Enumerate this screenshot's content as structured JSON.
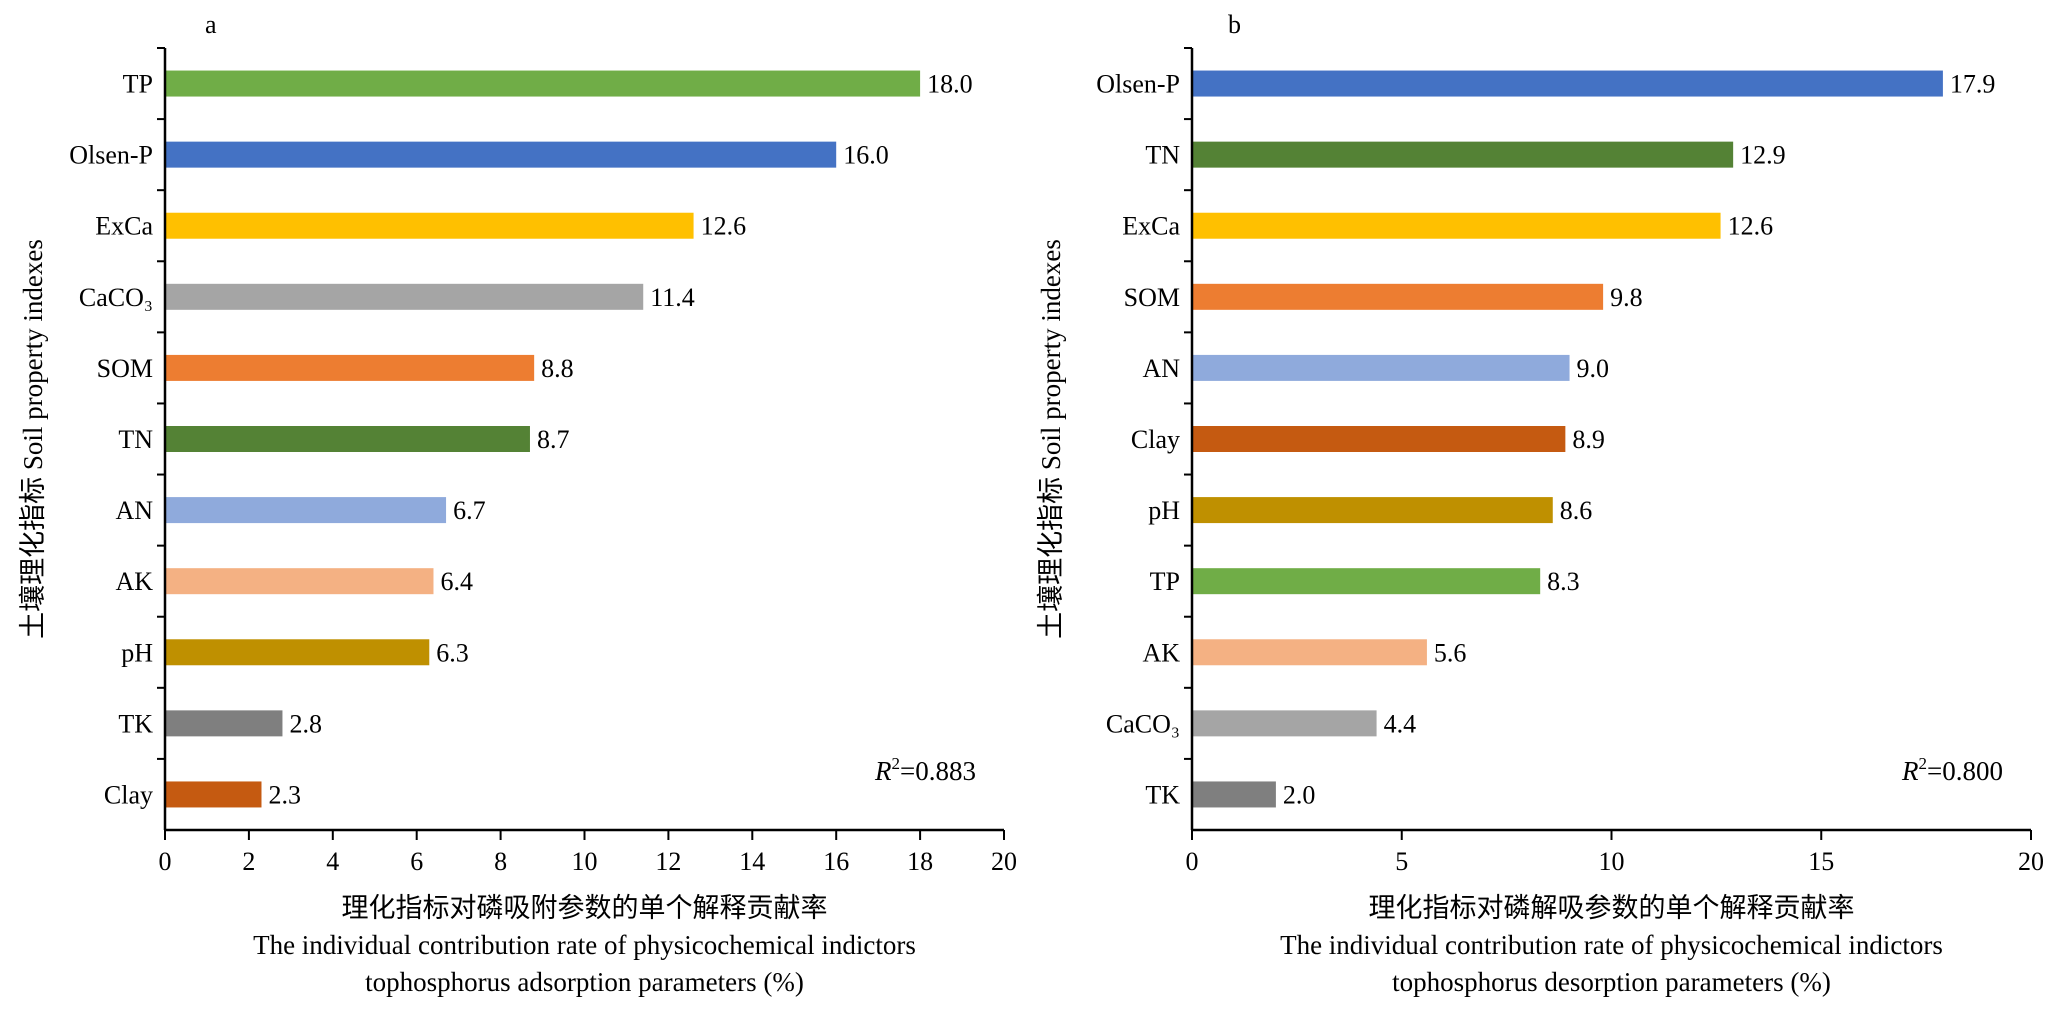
{
  "chart_data": [
    {
      "type": "bar",
      "orientation": "horizontal",
      "panel_label": "a",
      "title": "",
      "categories": [
        "TP",
        "Olsen-P",
        "ExCa",
        "CaCO₃",
        "SOM",
        "TN",
        "AN",
        "AK",
        "pH",
        "TK",
        "Clay"
      ],
      "values": [
        18.0,
        16.0,
        12.6,
        11.4,
        8.8,
        8.7,
        6.7,
        6.4,
        6.3,
        2.8,
        2.3
      ],
      "value_labels": [
        "18.0",
        "16.0",
        "12.6",
        "11.4",
        "8.8",
        "8.7",
        "6.7",
        "6.4",
        "6.3",
        "2.8",
        "2.3"
      ],
      "colors": [
        "#70ad47",
        "#4472c4",
        "#ffc000",
        "#a5a5a5",
        "#ed7d31",
        "#548235",
        "#8faadc",
        "#f4b183",
        "#bf9000",
        "#7f7f7f",
        "#c55a11"
      ],
      "xlim": [
        0,
        20
      ],
      "xticks": [
        "0",
        "2",
        "4",
        "6",
        "8",
        "10",
        "12",
        "14",
        "16",
        "18",
        "20"
      ],
      "ylabel": "土壤理化指标 Soil property indexes",
      "xlabel_lines": [
        "理化指标对磷吸附参数的单个解释贡献率",
        "The individual contribution rate of physicochemical indictors",
        "tophosphorus adsorption parameters (%)"
      ],
      "annotation": {
        "r_symbol": "R",
        "r_exponent": "2",
        "r_value": "=0.883"
      }
    },
    {
      "type": "bar",
      "orientation": "horizontal",
      "panel_label": "b",
      "title": "",
      "categories": [
        "Olsen-P",
        "TN",
        "ExCa",
        "SOM",
        "AN",
        "Clay",
        "pH",
        "TP",
        "AK",
        "CaCO₃",
        "TK"
      ],
      "values": [
        17.9,
        12.9,
        12.6,
        9.8,
        9.0,
        8.9,
        8.6,
        8.3,
        5.6,
        4.4,
        2.0
      ],
      "value_labels": [
        "17.9",
        "12.9",
        "12.6",
        "9.8",
        "9.0",
        "8.9",
        "8.6",
        "8.3",
        "5.6",
        "4.4",
        "2.0"
      ],
      "colors": [
        "#4472c4",
        "#548235",
        "#ffc000",
        "#ed7d31",
        "#8faadc",
        "#c55a11",
        "#bf9000",
        "#70ad47",
        "#f4b183",
        "#a5a5a5",
        "#7f7f7f"
      ],
      "xlim": [
        0,
        20
      ],
      "xticks": [
        "0",
        "5",
        "10",
        "15",
        "20"
      ],
      "ylabel": "土壤理化指标 Soil property indexes",
      "xlabel_lines": [
        "理化指标对磷解吸参数的单个解释贡献率",
        "The individual contribution rate of physicochemical indictors",
        "tophosphorus desorption parameters (%)"
      ],
      "annotation": {
        "r_symbol": "R",
        "r_exponent": "2",
        "r_value": "=0.800"
      }
    }
  ]
}
